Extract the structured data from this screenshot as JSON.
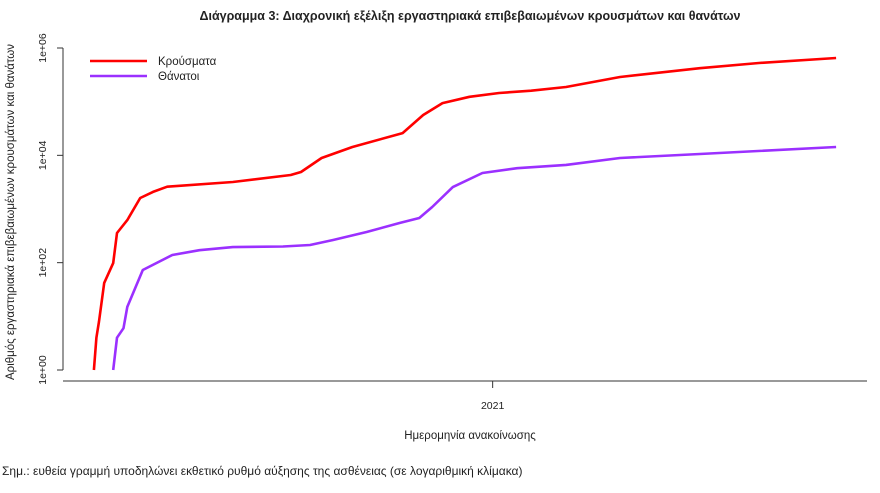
{
  "chart_data": {
    "type": "line",
    "title": "Διάγραμμα 3: Διαχρονική εξέλιξη εργαστηριακά επιβεβαιωμένων κρουσμάτων και θανάτων",
    "xlabel": "Ημερομηνία ανακοίνωσης",
    "ylabel": "Αριθμός εργαστηριακά επιβεβαιωμένων κρουσμάτων και θανάτων",
    "yscale": "log",
    "ylim": [
      1,
      1000000
    ],
    "yticks": [
      1,
      100,
      10000,
      1000000
    ],
    "ytick_labels": [
      "1e+00",
      "1e+02",
      "1e+04",
      "1e+06"
    ],
    "xlim": [
      "2020-02-02",
      "2021-10-19"
    ],
    "xticks": [
      "2021-01-01"
    ],
    "xtick_labels": [
      "2021"
    ],
    "grid": false,
    "legend": "top-left",
    "note": "Σημ.: ευθεία γραμμή υποδηλώνει εκθετικό ρυθμό αύξησης της ασθένειας (σε λογαριθμική κλίμακα)",
    "series": [
      {
        "name": "Κρούσματα",
        "color": "#ff0000",
        "x": [
          "2020-02-26",
          "2020-02-28",
          "2020-03-01",
          "2020-03-05",
          "2020-03-12",
          "2020-03-15",
          "2020-03-23",
          "2020-04-02",
          "2020-04-12",
          "2020-04-23",
          "2020-06-13",
          "2020-07-28",
          "2020-08-05",
          "2020-08-21",
          "2020-09-14",
          "2020-10-23",
          "2020-11-08",
          "2020-11-23",
          "2020-12-14",
          "2021-01-06",
          "2021-01-31",
          "2021-02-27",
          "2021-04-10",
          "2021-06-11",
          "2021-07-27",
          "2021-09-25"
        ],
        "values": [
          1,
          4,
          8,
          42,
          98,
          357,
          620,
          1600,
          2080,
          2600,
          3180,
          4300,
          4900,
          8900,
          14300,
          26000,
          56500,
          94000,
          123000,
          145000,
          160000,
          188000,
          288000,
          420000,
          525000,
          650000
        ]
      },
      {
        "name": "Θάνατοι",
        "color": "#9b30ff",
        "x": [
          "2020-03-12",
          "2020-03-15",
          "2020-03-20",
          "2020-03-23",
          "2020-04-04",
          "2020-04-27",
          "2020-05-18",
          "2020-06-13",
          "2020-07-22",
          "2020-08-12",
          "2020-08-30",
          "2020-09-25",
          "2020-10-21",
          "2020-11-05",
          "2020-11-15",
          "2020-12-01",
          "2020-12-24",
          "2021-01-20",
          "2021-02-27",
          "2021-04-10",
          "2021-06-11",
          "2021-09-25"
        ],
        "values": [
          1,
          4,
          6,
          15,
          73,
          139,
          171,
          195,
          200,
          213,
          265,
          373,
          550,
          680,
          1090,
          2560,
          4690,
          5770,
          6630,
          8900,
          10600,
          14300
        ]
      }
    ]
  }
}
